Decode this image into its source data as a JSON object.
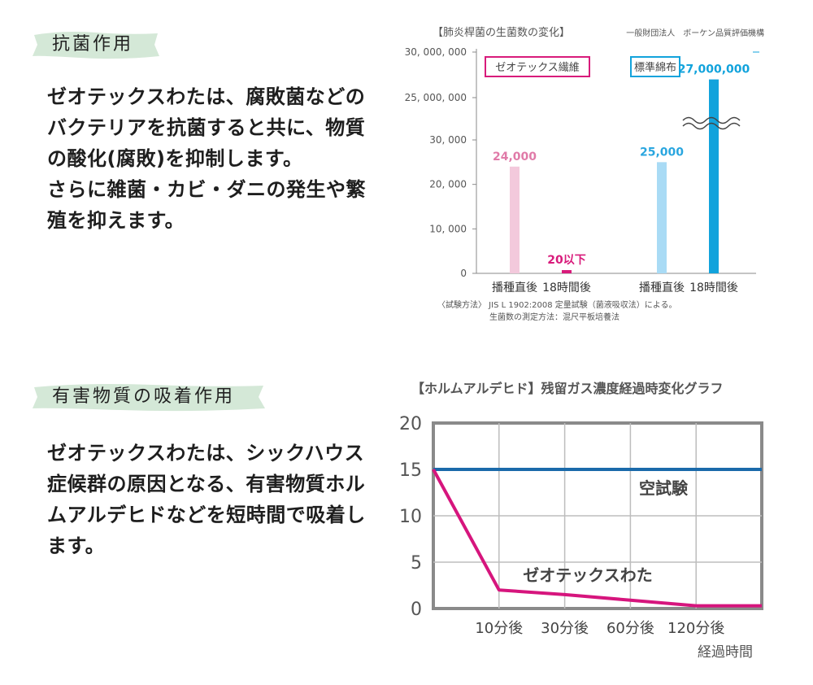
{
  "section1": {
    "heading": "抗菌作用",
    "body_lines": [
      "ゼオテックスわたは、腐敗菌などの",
      "バクテリアを抗菌すると共に、物質",
      "の酸化(腐敗)を抑制します。",
      "さらに雑菌・カビ・ダニの発生や繁",
      "殖を抑えます。"
    ]
  },
  "section2": {
    "heading": "有害物質の吸着作用",
    "body_lines": [
      "ゼオテックスわたは、シックハウス",
      "症候群の原因となる、有害物質ホル",
      "ムアルデヒドなどを短時間で吸着し",
      "ます。"
    ]
  },
  "colors": {
    "label_brush": "#cfe5d3",
    "pink_light": "#f3c9dc",
    "pink": "#d81b7b",
    "pink_label": "#e07aa8",
    "blue_light": "#a9dbf5",
    "blue": "#12a3dc",
    "blue_label": "#2aa6df",
    "line_blue": "#1a6aaa",
    "line_magenta": "#d6157d",
    "axis_gray": "#8a8a8a",
    "grid_gray": "#bdbdbd",
    "text_gray": "#555555"
  },
  "chart_data": [
    {
      "type": "bar",
      "title": "【肺炎桿菌の生菌数の変化】",
      "source": "一般財団法人　ボーケン品質評価機構",
      "y_tick_labels": [
        "0",
        "10, 000",
        "20, 000",
        "30, 000",
        "25, 000, 000",
        "30, 000, 000"
      ],
      "axis_break": true,
      "groups": [
        {
          "name": "ゼオテックス繊維",
          "categories": [
            "播種直後",
            "18時間後"
          ],
          "values": [
            24000,
            20
          ],
          "data_labels": [
            "24,000",
            "20以下"
          ]
        },
        {
          "name": "標準綿布",
          "categories": [
            "播種直後",
            "18時間後"
          ],
          "values": [
            25000,
            27000000
          ],
          "data_labels": [
            "25,000",
            "27,000,000"
          ]
        }
      ],
      "notes": [
        "〈試験方法〉 JIS L 1902:2008 定量試験（菌液吸収法）による。",
        "生菌数の測定方法：混尺平板培養法"
      ]
    },
    {
      "type": "line",
      "title": "【ホルムアルデヒド】残留ガス濃度経過時変化グラフ",
      "x": [
        "",
        "10分後",
        "30分後",
        "60分後",
        "120分後",
        ""
      ],
      "x_tick_labels": [
        "10分後",
        "30分後",
        "60分後",
        "120分後"
      ],
      "xlabel": "経過時間",
      "ylim": [
        0,
        20
      ],
      "y_ticks": [
        0,
        5,
        10,
        15,
        20
      ],
      "grid": true,
      "series": [
        {
          "name": "空試験",
          "values": [
            15,
            15,
            15,
            15,
            15,
            15
          ]
        },
        {
          "name": "ゼオテックスわた",
          "values": [
            15,
            2,
            1.5,
            0.9,
            0.3,
            0.3
          ]
        }
      ]
    }
  ]
}
